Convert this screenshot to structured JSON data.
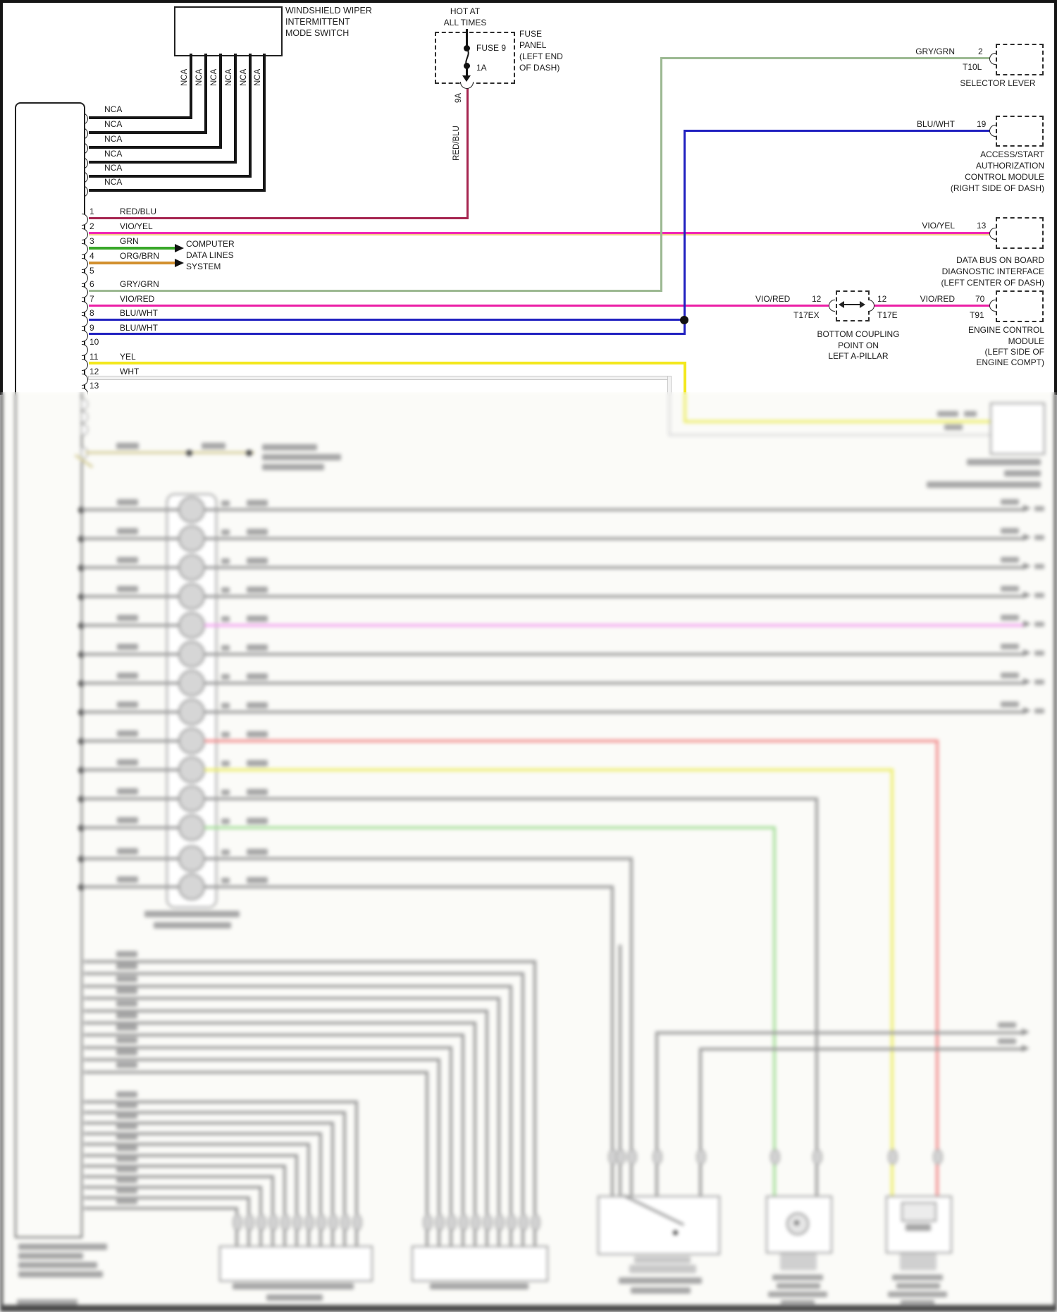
{
  "colors": {
    "red_blu": "#a62550",
    "vio_yel": "#f128b5",
    "vio_yel_stripe": "#f0cf86",
    "grn": "#3aa829",
    "org_brn": "#d2902f",
    "gry_grn": "#9cb992",
    "vio_red": "#ec1fa6",
    "blu_wht": "#2121c0",
    "yel": "#f3e81d",
    "wht": "#f2f2f2",
    "wire_black": "#161616",
    "blur_pink": "#f3a8f0",
    "blur_red": "#f29090",
    "blur_yellow": "#edee6e",
    "blur_green": "#a8df9c",
    "blur_tan": "#d9d2a4"
  },
  "switch": {
    "title1": "WINDSHIELD WIPER",
    "title2": "INTERMITTENT",
    "title3": "MODE SWITCH",
    "nca": "NCA"
  },
  "fuse": {
    "hot1": "HOT AT",
    "hot2": "ALL TIMES",
    "name": "FUSE 9",
    "amp": "1A",
    "tap": "9A",
    "wire": "RED/BLU",
    "panel1": "FUSE",
    "panel2": "PANEL",
    "panel3": "(LEFT END",
    "panel4": "OF DASH)"
  },
  "connector": {
    "pins": [
      "1",
      "2",
      "3",
      "4",
      "5",
      "6",
      "7",
      "8",
      "9",
      "10",
      "11",
      "12",
      "13"
    ],
    "wires": [
      "RED/BLU",
      "VIO/YEL",
      "GRN",
      "ORG/BRN",
      "",
      "GRY/GRN",
      "VIO/RED",
      "BLU/WHT",
      "BLU/WHT",
      "",
      "YEL",
      "WHT",
      ""
    ]
  },
  "datalines": {
    "line1": "COMPUTER",
    "line2": "DATA LINES",
    "line3": "SYSTEM"
  },
  "selector": {
    "wire": "GRY/GRN",
    "pin": "2",
    "term": "T10L",
    "name": "SELECTOR LEVER"
  },
  "access": {
    "wire": "BLU/WHT",
    "pin": "19",
    "name1": "ACCESS/START",
    "name2": "AUTHORIZATION",
    "name3": "CONTROL MODULE",
    "name4": "(RIGHT SIDE OF DASH)"
  },
  "databus": {
    "wire": "VIO/YEL",
    "pin": "13",
    "name1": "DATA BUS ON BOARD",
    "name2": "DIAGNOSTIC INTERFACE",
    "name3": "(LEFT CENTER OF DASH)"
  },
  "ecm": {
    "wire_left": "VIO/RED",
    "pin_left": "12",
    "term_left": "T17EX",
    "pin_mid": "12",
    "term_mid": "T17E",
    "wire": "VIO/RED",
    "pin": "70",
    "term": "T91",
    "name1": "ENGINE CONTROL",
    "name2": "MODULE",
    "name3": "(LEFT SIDE OF",
    "name4": "ENGINE COMPT)"
  },
  "coupling": {
    "line1": "BOTTOM COUPLING",
    "line2": "POINT ON",
    "line3": "LEFT A-PILLAR"
  }
}
